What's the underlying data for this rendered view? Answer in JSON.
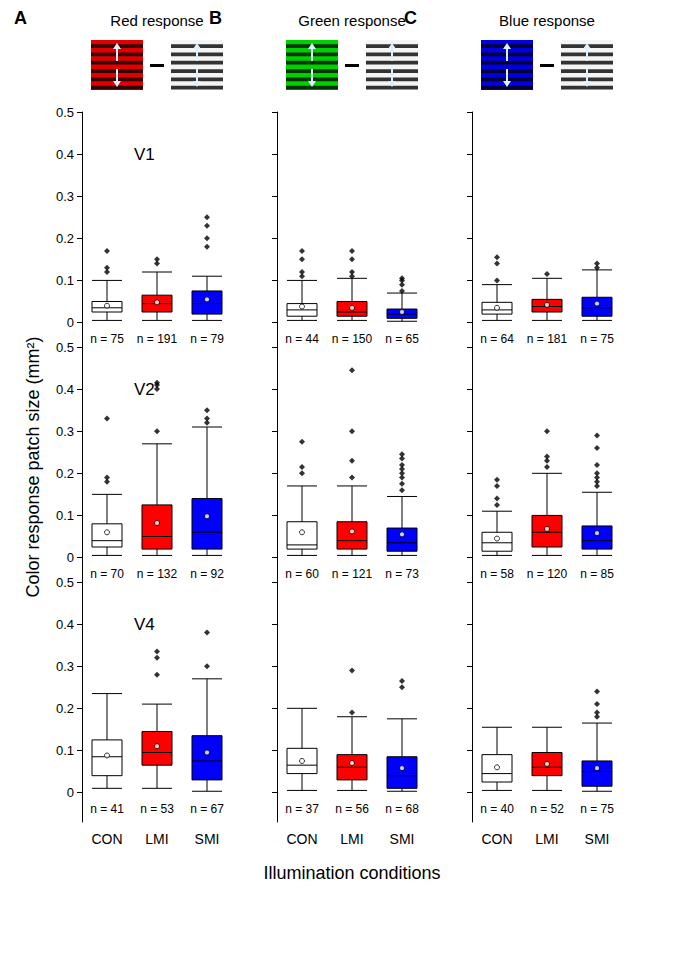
{
  "chart_data": [
    {
      "type": "boxplot",
      "panel": "A",
      "title": "Red response",
      "color": "#e00000",
      "row_label": "V1",
      "tick_labels": "y",
      "categories": [
        "CON",
        "LMI",
        "SMI"
      ],
      "colors": [
        "#ffffff",
        "#ff0000",
        "#0000ff"
      ],
      "boxes": [
        [
          0.005,
          0.025,
          0.035,
          0.05,
          0.1
        ],
        [
          0.005,
          0.025,
          0.045,
          0.065,
          0.12
        ],
        [
          0.005,
          0.02,
          0.045,
          0.075,
          0.11
        ]
      ],
      "means": [
        0.04,
        0.048,
        0.055
      ],
      "outliers": [
        [
          0.12,
          0.13,
          0.17
        ],
        [
          0.14,
          0.15
        ],
        [
          0.18,
          0.2,
          0.23,
          0.25
        ]
      ],
      "n_labels": [
        "n = 75",
        "n = 191",
        "n = 79"
      ],
      "ylim": [
        -0.07,
        0.5
      ],
      "yticks": [
        0,
        0.1,
        0.2,
        0.3,
        0.4,
        0.5
      ]
    },
    {
      "type": "boxplot",
      "panel": "B",
      "title": "Green response",
      "color": "#00d000",
      "tick_labels": false,
      "categories": [
        "CON",
        "LMI",
        "SMI"
      ],
      "colors": [
        "#ffffff",
        "#ff0000",
        "#0000ff"
      ],
      "boxes": [
        [
          0.005,
          0.015,
          0.03,
          0.045,
          0.1
        ],
        [
          0.005,
          0.015,
          0.025,
          0.05,
          0.105
        ],
        [
          0.003,
          0.01,
          0.02,
          0.032,
          0.07
        ]
      ],
      "means": [
        0.038,
        0.035,
        0.025
      ],
      "outliers": [
        [
          0.11,
          0.12,
          0.15,
          0.17
        ],
        [
          0.11,
          0.12,
          0.15,
          0.17
        ],
        [
          0.075,
          0.09,
          0.1,
          0.105
        ]
      ],
      "n_labels": [
        "n = 44",
        "n = 150",
        "n = 65"
      ],
      "ylim": [
        -0.07,
        0.5
      ],
      "yticks": [
        0,
        0.1,
        0.2,
        0.3,
        0.4,
        0.5
      ]
    },
    {
      "type": "boxplot",
      "panel": "C",
      "title": "Blue response",
      "color": "#0000e0",
      "tick_labels": false,
      "categories": [
        "CON",
        "LMI",
        "SMI"
      ],
      "colors": [
        "#ffffff",
        "#ff0000",
        "#0000ff"
      ],
      "boxes": [
        [
          0.005,
          0.02,
          0.03,
          0.048,
          0.09
        ],
        [
          0.005,
          0.025,
          0.038,
          0.055,
          0.105
        ],
        [
          0.005,
          0.015,
          0.035,
          0.06,
          0.125
        ]
      ],
      "means": [
        0.035,
        0.042,
        0.045
      ],
      "outliers": [
        [
          0.1,
          0.14,
          0.155
        ],
        [
          0.115
        ],
        [
          0.13,
          0.14
        ]
      ],
      "n_labels": [
        "n = 64",
        "n = 181",
        "n = 75"
      ],
      "ylim": [
        -0.07,
        0.5
      ],
      "yticks": [
        0,
        0.1,
        0.2,
        0.3,
        0.4,
        0.5
      ]
    },
    {
      "type": "boxplot",
      "row_label": "V2",
      "tick_labels": "y",
      "ylabel": "Color response patch size (mm²)",
      "categories": [
        "CON",
        "LMI",
        "SMI"
      ],
      "colors": [
        "#ffffff",
        "#ff0000",
        "#0000ff"
      ],
      "boxes": [
        [
          0.005,
          0.025,
          0.04,
          0.08,
          0.15
        ],
        [
          0.005,
          0.02,
          0.05,
          0.125,
          0.27
        ],
        [
          0.005,
          0.02,
          0.06,
          0.14,
          0.31
        ]
      ],
      "means": [
        0.06,
        0.082,
        0.098
      ],
      "outliers": [
        [
          0.18,
          0.19,
          0.33
        ],
        [
          0.3,
          0.4,
          0.41,
          0.415
        ],
        [
          0.32,
          0.33,
          0.35
        ]
      ],
      "n_labels": [
        "n = 70",
        "n = 132",
        "n = 92"
      ],
      "ylim": [
        -0.07,
        0.5
      ],
      "yticks": [
        0,
        0.1,
        0.2,
        0.3,
        0.4,
        0.5
      ]
    },
    {
      "type": "boxplot",
      "tick_labels": false,
      "categories": [
        "CON",
        "LMI",
        "SMI"
      ],
      "colors": [
        "#ffffff",
        "#ff0000",
        "#0000ff"
      ],
      "boxes": [
        [
          0.005,
          0.02,
          0.03,
          0.085,
          0.17
        ],
        [
          0.005,
          0.02,
          0.04,
          0.085,
          0.17
        ],
        [
          0.005,
          0.015,
          0.035,
          0.07,
          0.145
        ]
      ],
      "means": [
        0.06,
        0.062,
        0.055
      ],
      "outliers": [
        [
          0.2,
          0.215,
          0.275
        ],
        [
          0.19,
          0.23,
          0.3,
          0.445
        ],
        [
          0.16,
          0.175,
          0.19,
          0.2,
          0.21,
          0.22,
          0.235,
          0.245
        ]
      ],
      "n_labels": [
        "n = 60",
        "n = 121",
        "n = 73"
      ],
      "ylim": [
        -0.07,
        0.5
      ],
      "yticks": [
        0,
        0.1,
        0.2,
        0.3,
        0.4,
        0.5
      ]
    },
    {
      "type": "boxplot",
      "tick_labels": false,
      "categories": [
        "CON",
        "LMI",
        "SMI"
      ],
      "colors": [
        "#ffffff",
        "#ff0000",
        "#0000ff"
      ],
      "boxes": [
        [
          0.005,
          0.015,
          0.035,
          0.06,
          0.11
        ],
        [
          0.005,
          0.025,
          0.06,
          0.1,
          0.2
        ],
        [
          0.005,
          0.02,
          0.04,
          0.075,
          0.155
        ]
      ],
      "means": [
        0.045,
        0.068,
        0.058
      ],
      "outliers": [
        [
          0.125,
          0.14,
          0.17,
          0.185
        ],
        [
          0.215,
          0.23,
          0.24,
          0.3
        ],
        [
          0.17,
          0.18,
          0.19,
          0.2,
          0.22,
          0.26,
          0.29
        ]
      ],
      "n_labels": [
        "n = 58",
        "n = 120",
        "n = 85"
      ],
      "ylim": [
        -0.07,
        0.5
      ],
      "yticks": [
        0,
        0.1,
        0.2,
        0.3,
        0.4,
        0.5
      ]
    },
    {
      "type": "boxplot",
      "row_label": "V4",
      "categories": [
        "CON",
        "LMI",
        "SMI"
      ],
      "colors": [
        "#ffffff",
        "#ff0000",
        "#0000ff"
      ],
      "boxes": [
        [
          0.01,
          0.04,
          0.085,
          0.125,
          0.235
        ],
        [
          0.01,
          0.065,
          0.095,
          0.145,
          0.21
        ],
        [
          0.003,
          0.03,
          0.075,
          0.135,
          0.27
        ]
      ],
      "means": [
        0.088,
        0.11,
        0.095
      ],
      "outliers": [
        [],
        [
          0.28,
          0.32,
          0.335
        ],
        [
          0.3,
          0.38
        ]
      ],
      "n_labels": [
        "n = 41",
        "n = 53",
        "n = 67"
      ],
      "ylim": [
        -0.07,
        0.5
      ],
      "yticks": [
        0,
        0.1,
        0.2,
        0.3,
        0.4,
        0.5
      ]
    },
    {
      "type": "boxplot",
      "tick_labels": "x",
      "xlabel": "Illumination conditions",
      "categories": [
        "CON",
        "LMI",
        "SMI"
      ],
      "colors": [
        "#ffffff",
        "#ff0000",
        "#0000ff"
      ],
      "boxes": [
        [
          0.005,
          0.045,
          0.065,
          0.105,
          0.2
        ],
        [
          0.005,
          0.03,
          0.06,
          0.09,
          0.18
        ],
        [
          0.003,
          0.01,
          0.04,
          0.085,
          0.175
        ]
      ],
      "means": [
        0.075,
        0.07,
        0.058
      ],
      "outliers": [
        [],
        [
          0.19,
          0.29
        ],
        [
          0.25,
          0.265
        ]
      ],
      "n_labels": [
        "n = 37",
        "n = 56",
        "n = 68"
      ],
      "ylim": [
        -0.07,
        0.5
      ],
      "yticks": [
        0,
        0.1,
        0.2,
        0.3,
        0.4,
        0.5
      ]
    },
    {
      "type": "boxplot",
      "tick_labels": "x",
      "categories": [
        "CON",
        "LMI",
        "SMI"
      ],
      "colors": [
        "#ffffff",
        "#ff0000",
        "#0000ff"
      ],
      "boxes": [
        [
          0.005,
          0.025,
          0.045,
          0.09,
          0.155
        ],
        [
          0.005,
          0.04,
          0.06,
          0.095,
          0.155
        ],
        [
          0.003,
          0.015,
          0.05,
          0.075,
          0.165
        ]
      ],
      "means": [
        0.06,
        0.068,
        0.058
      ],
      "outliers": [
        [],
        [],
        [
          0.18,
          0.19,
          0.21,
          0.24
        ]
      ],
      "n_labels": [
        "n = 40",
        "n = 52",
        "n = 75"
      ],
      "ylim": [
        -0.07,
        0.5
      ],
      "yticks": [
        0,
        0.1,
        0.2,
        0.3,
        0.4,
        0.5
      ]
    }
  ]
}
